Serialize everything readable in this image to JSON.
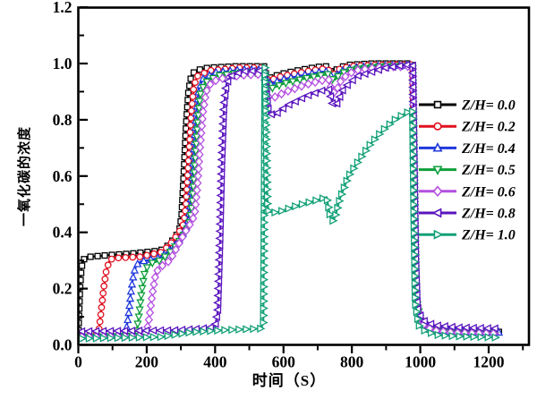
{
  "figure": {
    "background": "#ffffff",
    "frame_color": "#000000"
  },
  "chart_data": {
    "type": "line",
    "title": "",
    "xlabel": "时间（S）",
    "ylabel": "一氧化碳的浓度",
    "xlim": [
      0,
      1318
    ],
    "ylim": [
      0,
      1.2
    ],
    "grid": false,
    "x_tick_labels": [
      "0",
      "200",
      "400",
      "600",
      "800",
      "1000",
      "1200"
    ],
    "x_major_ticks": [
      0,
      200,
      400,
      600,
      800,
      1000,
      1200
    ],
    "x_minor_ticks": [
      100,
      300,
      500,
      700,
      900,
      1100,
      1300
    ],
    "y_tick_labels": [
      "0.0",
      "0.2",
      "0.4",
      "0.6",
      "0.8",
      "1.0",
      "1.2"
    ],
    "y_major_ticks": [
      0,
      0.2,
      0.4,
      0.6,
      0.8,
      1.0,
      1.2
    ],
    "y_minor_ticks": [
      0.1,
      0.3,
      0.5,
      0.7,
      0.9,
      1.1
    ],
    "legend_position": "inside-right",
    "series": [
      {
        "name": "Z/H= 0.0",
        "color": "#000000",
        "marker": "square",
        "points": [
          [
            0,
            0.04
          ],
          [
            2,
            0.1
          ],
          [
            5,
            0.2
          ],
          [
            9,
            0.27
          ],
          [
            14,
            0.302
          ],
          [
            25,
            0.312
          ],
          [
            80,
            0.318
          ],
          [
            160,
            0.325
          ],
          [
            240,
            0.335
          ],
          [
            265,
            0.355
          ],
          [
            285,
            0.385
          ],
          [
            296,
            0.41
          ],
          [
            302,
            0.46
          ],
          [
            308,
            0.6
          ],
          [
            315,
            0.78
          ],
          [
            322,
            0.9
          ],
          [
            330,
            0.955
          ],
          [
            342,
            0.975
          ],
          [
            380,
            0.985
          ],
          [
            460,
            0.99
          ],
          [
            543,
            0.99
          ],
          [
            551,
            0.952
          ],
          [
            562,
            0.95
          ],
          [
            590,
            0.962
          ],
          [
            640,
            0.975
          ],
          [
            700,
            0.988
          ],
          [
            728,
            0.99
          ],
          [
            738,
            0.972
          ],
          [
            747,
            0.97
          ],
          [
            762,
            0.985
          ],
          [
            790,
            0.995
          ],
          [
            860,
            1.0
          ],
          [
            978,
            1.0
          ],
          [
            982,
            0.55
          ],
          [
            986,
            0.22
          ],
          [
            995,
            0.11
          ],
          [
            1015,
            0.07
          ],
          [
            1060,
            0.052
          ],
          [
            1230,
            0.046
          ]
        ]
      },
      {
        "name": "Z/H= 0.2",
        "color": "#e01020",
        "marker": "circle",
        "points": [
          [
            0,
            0.03
          ],
          [
            50,
            0.033
          ],
          [
            60,
            0.05
          ],
          [
            66,
            0.11
          ],
          [
            74,
            0.2
          ],
          [
            82,
            0.265
          ],
          [
            90,
            0.295
          ],
          [
            100,
            0.308
          ],
          [
            180,
            0.313
          ],
          [
            245,
            0.33
          ],
          [
            270,
            0.36
          ],
          [
            292,
            0.395
          ],
          [
            308,
            0.43
          ],
          [
            315,
            0.5
          ],
          [
            322,
            0.65
          ],
          [
            330,
            0.82
          ],
          [
            338,
            0.92
          ],
          [
            348,
            0.955
          ],
          [
            385,
            0.975
          ],
          [
            470,
            0.985
          ],
          [
            543,
            0.985
          ],
          [
            552,
            0.945
          ],
          [
            564,
            0.942
          ],
          [
            595,
            0.955
          ],
          [
            650,
            0.968
          ],
          [
            705,
            0.98
          ],
          [
            729,
            0.982
          ],
          [
            739,
            0.965
          ],
          [
            748,
            0.962
          ],
          [
            764,
            0.98
          ],
          [
            795,
            0.99
          ],
          [
            870,
            0.995
          ],
          [
            978,
            0.996
          ],
          [
            983,
            0.5
          ],
          [
            987,
            0.2
          ],
          [
            997,
            0.1
          ],
          [
            1020,
            0.062
          ],
          [
            1070,
            0.05
          ],
          [
            1230,
            0.046
          ]
        ]
      },
      {
        "name": "Z/H= 0.4",
        "color": "#2038dc",
        "marker": "triangle-up",
        "points": [
          [
            0,
            0.03
          ],
          [
            128,
            0.034
          ],
          [
            140,
            0.05
          ],
          [
            147,
            0.11
          ],
          [
            155,
            0.2
          ],
          [
            163,
            0.26
          ],
          [
            171,
            0.285
          ],
          [
            182,
            0.296
          ],
          [
            235,
            0.308
          ],
          [
            262,
            0.33
          ],
          [
            288,
            0.36
          ],
          [
            308,
            0.4
          ],
          [
            320,
            0.43
          ],
          [
            328,
            0.5
          ],
          [
            336,
            0.65
          ],
          [
            344,
            0.81
          ],
          [
            352,
            0.905
          ],
          [
            364,
            0.945
          ],
          [
            400,
            0.968
          ],
          [
            480,
            0.978
          ],
          [
            543,
            0.978
          ],
          [
            553,
            0.932
          ],
          [
            566,
            0.93
          ],
          [
            600,
            0.944
          ],
          [
            655,
            0.958
          ],
          [
            708,
            0.97
          ],
          [
            730,
            0.972
          ],
          [
            740,
            0.955
          ],
          [
            749,
            0.952
          ],
          [
            766,
            0.972
          ],
          [
            800,
            0.985
          ],
          [
            880,
            0.992
          ],
          [
            978,
            0.993
          ],
          [
            984,
            0.45
          ],
          [
            988,
            0.18
          ],
          [
            999,
            0.09
          ],
          [
            1025,
            0.058
          ],
          [
            1080,
            0.047
          ],
          [
            1230,
            0.044
          ]
        ]
      },
      {
        "name": "Z/H= 0.5",
        "color": "#10a03c",
        "marker": "triangle-down",
        "points": [
          [
            0,
            0.028
          ],
          [
            158,
            0.032
          ],
          [
            170,
            0.046
          ],
          [
            177,
            0.1
          ],
          [
            185,
            0.185
          ],
          [
            193,
            0.25
          ],
          [
            201,
            0.275
          ],
          [
            213,
            0.29
          ],
          [
            240,
            0.3
          ],
          [
            265,
            0.325
          ],
          [
            290,
            0.358
          ],
          [
            310,
            0.395
          ],
          [
            324,
            0.425
          ],
          [
            333,
            0.5
          ],
          [
            341,
            0.64
          ],
          [
            349,
            0.79
          ],
          [
            357,
            0.89
          ],
          [
            370,
            0.932
          ],
          [
            408,
            0.957
          ],
          [
            485,
            0.968
          ],
          [
            543,
            0.968
          ],
          [
            554,
            0.916
          ],
          [
            568,
            0.913
          ],
          [
            605,
            0.93
          ],
          [
            660,
            0.946
          ],
          [
            710,
            0.958
          ],
          [
            731,
            0.962
          ],
          [
            741,
            0.945
          ],
          [
            750,
            0.942
          ],
          [
            768,
            0.965
          ],
          [
            805,
            0.98
          ],
          [
            885,
            0.99
          ],
          [
            978,
            0.99
          ],
          [
            985,
            0.4
          ],
          [
            989,
            0.16
          ],
          [
            1001,
            0.085
          ],
          [
            1030,
            0.055
          ],
          [
            1090,
            0.045
          ],
          [
            1230,
            0.042
          ]
        ]
      },
      {
        "name": "Z/H= 0.6",
        "color": "#b44fe0",
        "marker": "diamond",
        "points": [
          [
            0,
            0.028
          ],
          [
            188,
            0.032
          ],
          [
            200,
            0.046
          ],
          [
            208,
            0.1
          ],
          [
            217,
            0.185
          ],
          [
            226,
            0.25
          ],
          [
            235,
            0.272
          ],
          [
            250,
            0.285
          ],
          [
            268,
            0.3
          ],
          [
            290,
            0.35
          ],
          [
            312,
            0.4
          ],
          [
            330,
            0.435
          ],
          [
            340,
            0.46
          ],
          [
            348,
            0.56
          ],
          [
            356,
            0.7
          ],
          [
            365,
            0.83
          ],
          [
            374,
            0.9
          ],
          [
            390,
            0.935
          ],
          [
            430,
            0.95
          ],
          [
            490,
            0.96
          ],
          [
            543,
            0.962
          ],
          [
            556,
            0.882
          ],
          [
            570,
            0.878
          ],
          [
            608,
            0.9
          ],
          [
            665,
            0.925
          ],
          [
            712,
            0.94
          ],
          [
            732,
            0.944
          ],
          [
            742,
            0.9
          ],
          [
            752,
            0.895
          ],
          [
            770,
            0.945
          ],
          [
            808,
            0.975
          ],
          [
            890,
            0.988
          ],
          [
            978,
            0.99
          ],
          [
            986,
            0.35
          ],
          [
            990,
            0.14
          ],
          [
            1003,
            0.08
          ],
          [
            1035,
            0.052
          ],
          [
            1100,
            0.043
          ],
          [
            1230,
            0.04
          ]
        ]
      },
      {
        "name": "Z/H= 0.8",
        "color": "#5a14be",
        "marker": "triangle-left",
        "points": [
          [
            0,
            0.048
          ],
          [
            280,
            0.052
          ],
          [
            360,
            0.058
          ],
          [
            400,
            0.065
          ],
          [
            408,
            0.12
          ],
          [
            414,
            0.35
          ],
          [
            420,
            0.65
          ],
          [
            426,
            0.85
          ],
          [
            433,
            0.925
          ],
          [
            445,
            0.955
          ],
          [
            480,
            0.972
          ],
          [
            543,
            0.975
          ],
          [
            557,
            0.825
          ],
          [
            572,
            0.815
          ],
          [
            610,
            0.85
          ],
          [
            668,
            0.885
          ],
          [
            715,
            0.905
          ],
          [
            733,
            0.908
          ],
          [
            744,
            0.855
          ],
          [
            754,
            0.85
          ],
          [
            775,
            0.91
          ],
          [
            815,
            0.955
          ],
          [
            900,
            0.985
          ],
          [
            960,
            0.995
          ],
          [
            978,
            0.997
          ],
          [
            987,
            0.3
          ],
          [
            992,
            0.13
          ],
          [
            1006,
            0.088
          ],
          [
            1040,
            0.07
          ],
          [
            1110,
            0.062
          ],
          [
            1230,
            0.058
          ]
        ]
      },
      {
        "name": "Z/H= 1.0",
        "color": "#12a077",
        "marker": "triangle-right",
        "points": [
          [
            0,
            0.022
          ],
          [
            240,
            0.028
          ],
          [
            330,
            0.045
          ],
          [
            420,
            0.052
          ],
          [
            535,
            0.058
          ],
          [
            541,
            0.08
          ],
          [
            543.5,
            0.55
          ],
          [
            545,
            0.95
          ],
          [
            546,
            0.99
          ],
          [
            548,
            0.85
          ],
          [
            551,
            0.6
          ],
          [
            553,
            0.5
          ],
          [
            557,
            0.473
          ],
          [
            580,
            0.47
          ],
          [
            640,
            0.495
          ],
          [
            700,
            0.515
          ],
          [
            726,
            0.525
          ],
          [
            736,
            0.46
          ],
          [
            745,
            0.44
          ],
          [
            752,
            0.46
          ],
          [
            765,
            0.52
          ],
          [
            790,
            0.6
          ],
          [
            820,
            0.655
          ],
          [
            855,
            0.715
          ],
          [
            890,
            0.762
          ],
          [
            925,
            0.8
          ],
          [
            955,
            0.822
          ],
          [
            977,
            0.835
          ],
          [
            981,
            0.45
          ],
          [
            985,
            0.15
          ],
          [
            995,
            0.07
          ],
          [
            1015,
            0.048
          ],
          [
            1055,
            0.034
          ],
          [
            1120,
            0.03
          ],
          [
            1230,
            0.026
          ]
        ]
      }
    ]
  }
}
